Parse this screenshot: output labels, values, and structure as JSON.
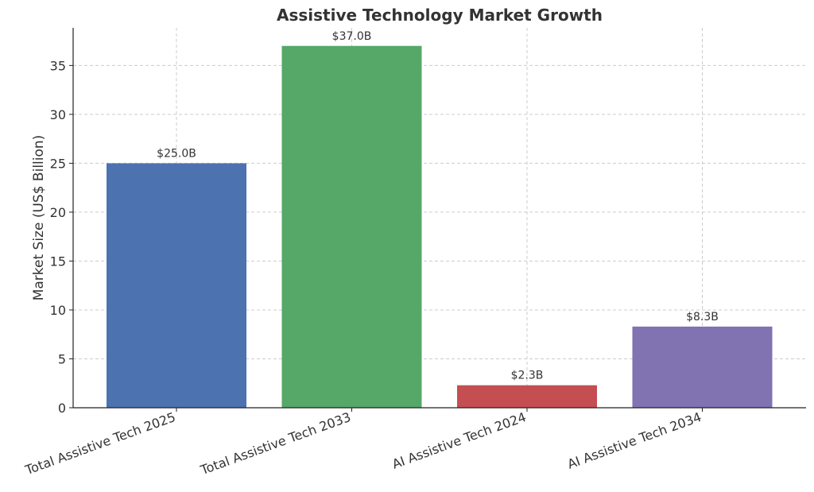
{
  "chart_data": {
    "type": "bar",
    "title": "Assistive Technology Market Growth",
    "xlabel": "",
    "ylabel": "Market Size (US$ Billion)",
    "categories": [
      "Total Assistive Tech 2025",
      "Total Assistive Tech 2033",
      "AI Assistive Tech 2024",
      "AI Assistive Tech 2034"
    ],
    "values": [
      25.0,
      37.0,
      2.3,
      8.3
    ],
    "data_labels": [
      "$25.0B",
      "$37.0B",
      "$2.3B",
      "$8.3B"
    ],
    "colors": [
      "#4c72b0",
      "#55a868",
      "#c44e52",
      "#8172b2"
    ],
    "ylim": [
      0,
      38.85
    ],
    "yticks": [
      0,
      5,
      10,
      15,
      20,
      25,
      30,
      35
    ],
    "grid": true,
    "legend": "none"
  }
}
